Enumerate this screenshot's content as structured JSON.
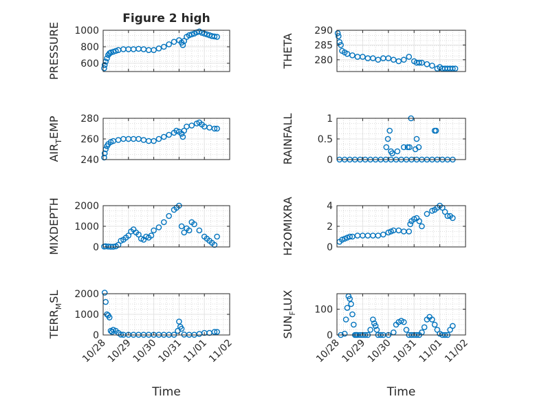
{
  "figure": {
    "title": "Figure 2 high",
    "marker_color": "#0072BD",
    "time_ticks": [
      "10/28",
      "10/29",
      "10/30",
      "10/31",
      "11/01",
      "11/02"
    ]
  },
  "chart_data": [
    {
      "id": "pressure",
      "type": "scatter",
      "title": "Figure 2 high",
      "ylabel_parts": [
        "PRESSURE"
      ],
      "xlabel": "",
      "xlim": [
        0,
        5
      ],
      "ylim": [
        500,
        1000
      ],
      "yticks": [
        600,
        800,
        1000
      ],
      "ytick_labels": [
        "600",
        "800",
        "1000"
      ],
      "grid": true,
      "x": [
        0.04,
        0.06,
        0.1,
        0.15,
        0.2,
        0.25,
        0.3,
        0.4,
        0.5,
        0.6,
        0.8,
        1.0,
        1.2,
        1.4,
        1.6,
        1.8,
        2.0,
        2.2,
        2.4,
        2.6,
        2.8,
        3.0,
        3.1,
        3.15,
        3.2,
        3.3,
        3.4,
        3.5,
        3.6,
        3.7,
        3.8,
        3.9,
        4.0,
        4.1,
        4.2,
        4.3,
        4.4,
        4.5
      ],
      "y": [
        540,
        580,
        620,
        660,
        700,
        720,
        730,
        740,
        750,
        760,
        770,
        770,
        770,
        775,
        770,
        760,
        760,
        780,
        800,
        830,
        860,
        880,
        850,
        820,
        870,
        920,
        940,
        950,
        960,
        975,
        985,
        970,
        960,
        950,
        940,
        930,
        925,
        920
      ]
    },
    {
      "id": "theta",
      "type": "scatter",
      "title": "",
      "ylabel_parts": [
        "THETA"
      ],
      "xlabel": "",
      "xlim": [
        0,
        5
      ],
      "ylim": [
        276,
        290
      ],
      "yticks": [
        280,
        285,
        290
      ],
      "ytick_labels": [
        "280",
        "285",
        "290"
      ],
      "grid": true,
      "x": [
        0.03,
        0.06,
        0.1,
        0.15,
        0.2,
        0.3,
        0.4,
        0.6,
        0.8,
        1.0,
        1.2,
        1.4,
        1.6,
        1.8,
        2.0,
        2.2,
        2.4,
        2.6,
        2.8,
        3.0,
        3.1,
        3.2,
        3.3,
        3.5,
        3.7,
        3.9,
        4.0,
        4.1,
        4.2,
        4.3,
        4.4,
        4.5,
        4.6
      ],
      "y": [
        289,
        288,
        286,
        285,
        283,
        282.5,
        282,
        281.5,
        281,
        281,
        280.5,
        280.5,
        280,
        280.5,
        280.5,
        280,
        279.5,
        280,
        281,
        279.5,
        279,
        279,
        279,
        278.5,
        278,
        277,
        277.5,
        277,
        277,
        277,
        277,
        277,
        277
      ]
    },
    {
      "id": "air_temp",
      "type": "scatter",
      "title": "",
      "ylabel_parts": [
        "AIR",
        "T",
        "EMP"
      ],
      "xlabel": "",
      "xlim": [
        0,
        5
      ],
      "ylim": [
        240,
        280
      ],
      "yticks": [
        240,
        260,
        280
      ],
      "ytick_labels": [
        "240",
        "260",
        "280"
      ],
      "grid": true,
      "x": [
        0.04,
        0.06,
        0.1,
        0.15,
        0.2,
        0.3,
        0.4,
        0.6,
        0.8,
        1.0,
        1.2,
        1.4,
        1.6,
        1.8,
        2.0,
        2.2,
        2.4,
        2.6,
        2.8,
        2.9,
        3.0,
        3.1,
        3.15,
        3.2,
        3.3,
        3.5,
        3.7,
        3.8,
        3.9,
        4.0,
        4.2,
        4.4,
        4.5
      ],
      "y": [
        242,
        246,
        250,
        253,
        255,
        257,
        258,
        259,
        260,
        260,
        260,
        260,
        259,
        258,
        258,
        260,
        262,
        264,
        266,
        268,
        267,
        265,
        262,
        268,
        272,
        273,
        275,
        276,
        274,
        272,
        271,
        270,
        270
      ]
    },
    {
      "id": "rainfall",
      "type": "scatter",
      "title": "",
      "ylabel_parts": [
        "RAINFALL"
      ],
      "xlabel": "",
      "xlim": [
        0,
        5
      ],
      "ylim": [
        0,
        1
      ],
      "yticks": [
        0,
        0.5,
        1
      ],
      "ytick_labels": [
        "0",
        "0.5",
        "1"
      ],
      "grid": true,
      "x": [
        0.1,
        0.3,
        0.5,
        0.7,
        0.9,
        1.1,
        1.3,
        1.5,
        1.7,
        1.9,
        2.1,
        2.3,
        2.5,
        2.7,
        2.9,
        3.1,
        3.3,
        3.5,
        3.7,
        3.9,
        4.1,
        4.3,
        4.5,
        1.92,
        1.98,
        2.05,
        2.1,
        2.15,
        2.35,
        2.6,
        2.75,
        2.82,
        2.88,
        3.05,
        3.1,
        3.18,
        3.8,
        3.85
      ],
      "y": [
        0,
        0,
        0,
        0,
        0,
        0,
        0,
        0,
        0,
        0,
        0,
        0,
        0,
        0,
        0,
        0,
        0,
        0,
        0,
        0,
        0,
        0,
        0,
        0.3,
        0.5,
        0.7,
        0.2,
        0.15,
        0.2,
        0.3,
        0.3,
        0.3,
        1.0,
        0.25,
        0.5,
        0.3,
        0.7,
        0.7
      ]
    },
    {
      "id": "mixdepth",
      "type": "scatter",
      "title": "",
      "ylabel_parts": [
        "MIXDEPTH"
      ],
      "xlabel": "",
      "xlim": [
        0,
        5
      ],
      "ylim": [
        0,
        2000
      ],
      "yticks": [
        0,
        1000,
        2000
      ],
      "ytick_labels": [
        "0",
        "1000",
        "2000"
      ],
      "grid": true,
      "x": [
        0.04,
        0.1,
        0.2,
        0.3,
        0.4,
        0.5,
        0.6,
        0.7,
        0.8,
        0.9,
        1.0,
        1.1,
        1.2,
        1.3,
        1.4,
        1.5,
        1.6,
        1.7,
        1.8,
        1.9,
        2.0,
        2.2,
        2.4,
        2.6,
        2.8,
        2.9,
        3.0,
        3.1,
        3.2,
        3.3,
        3.4,
        3.5,
        3.6,
        3.8,
        4.0,
        4.1,
        4.2,
        4.3,
        4.4,
        4.5
      ],
      "y": [
        20,
        30,
        20,
        10,
        10,
        30,
        100,
        300,
        350,
        450,
        550,
        750,
        850,
        700,
        600,
        400,
        350,
        500,
        450,
        550,
        800,
        950,
        1200,
        1500,
        1800,
        1900,
        2000,
        1000,
        700,
        900,
        800,
        1200,
        1100,
        800,
        500,
        400,
        300,
        200,
        100,
        500
      ]
    },
    {
      "id": "h2omixra",
      "type": "scatter",
      "title": "",
      "ylabel_parts": [
        "H2OMIXRA"
      ],
      "xlabel": "",
      "xlim": [
        0,
        5
      ],
      "ylim": [
        0,
        4
      ],
      "yticks": [
        0,
        2,
        4
      ],
      "ytick_labels": [
        "0",
        "2",
        "4"
      ],
      "grid": true,
      "x": [
        0.1,
        0.2,
        0.3,
        0.4,
        0.5,
        0.6,
        0.8,
        1.0,
        1.2,
        1.4,
        1.6,
        1.8,
        2.0,
        2.1,
        2.2,
        2.4,
        2.6,
        2.8,
        2.85,
        2.9,
        3.0,
        3.1,
        3.2,
        3.3,
        3.5,
        3.7,
        3.8,
        3.9,
        4.0,
        4.1,
        4.2,
        4.3,
        4.4,
        4.5
      ],
      "y": [
        0.5,
        0.7,
        0.8,
        0.9,
        1.0,
        1.0,
        1.1,
        1.1,
        1.1,
        1.1,
        1.1,
        1.2,
        1.4,
        1.5,
        1.6,
        1.6,
        1.5,
        1.5,
        2.2,
        2.5,
        2.7,
        2.8,
        2.5,
        2.0,
        3.2,
        3.5,
        3.6,
        3.8,
        4.0,
        3.8,
        3.4,
        3.0,
        3.0,
        2.8
      ]
    },
    {
      "id": "terr_msl",
      "type": "scatter",
      "title": "",
      "ylabel_parts": [
        "TERR",
        "M",
        "SL"
      ],
      "xlabel": "Time",
      "xlim": [
        0,
        5
      ],
      "ylim": [
        0,
        2000
      ],
      "yticks": [
        0,
        1000,
        2000
      ],
      "ytick_labels": [
        "0",
        "1000",
        "2000"
      ],
      "grid": true,
      "x": [
        0.06,
        0.1,
        0.15,
        0.2,
        0.25,
        0.3,
        0.35,
        0.4,
        0.5,
        0.6,
        0.7,
        0.8,
        1.0,
        1.2,
        1.4,
        1.6,
        1.8,
        2.0,
        2.2,
        2.4,
        2.6,
        2.8,
        2.95,
        3.0,
        3.05,
        3.1,
        3.2,
        3.4,
        3.6,
        3.8,
        4.0,
        4.2,
        4.4,
        4.5
      ],
      "y": [
        2050,
        1600,
        1000,
        950,
        850,
        200,
        150,
        250,
        200,
        100,
        20,
        10,
        10,
        10,
        10,
        10,
        10,
        10,
        10,
        10,
        10,
        10,
        200,
        650,
        400,
        300,
        20,
        10,
        10,
        50,
        100,
        100,
        150,
        150
      ]
    },
    {
      "id": "sun_flux",
      "type": "scatter",
      "title": "",
      "ylabel_parts": [
        "SUN",
        "F",
        "LUX"
      ],
      "xlabel": "Time",
      "xlim": [
        0,
        5
      ],
      "ylim": [
        0,
        160
      ],
      "yticks": [
        0,
        100
      ],
      "ytick_labels": [
        "0",
        "100"
      ],
      "grid": true,
      "x": [
        0.15,
        0.3,
        0.35,
        0.4,
        0.45,
        0.5,
        0.55,
        0.6,
        0.65,
        0.7,
        0.75,
        0.8,
        0.9,
        1.0,
        1.1,
        1.2,
        1.3,
        1.4,
        1.45,
        1.5,
        1.55,
        1.6,
        1.7,
        1.8,
        2.0,
        2.2,
        2.3,
        2.4,
        2.5,
        2.6,
        2.7,
        2.8,
        2.9,
        3.0,
        3.1,
        3.2,
        3.3,
        3.4,
        3.5,
        3.6,
        3.7,
        3.8,
        3.9,
        4.0,
        4.1,
        4.2,
        4.3,
        4.4,
        4.5
      ],
      "y": [
        0,
        5,
        60,
        105,
        150,
        140,
        120,
        80,
        40,
        0,
        0,
        0,
        0,
        0,
        0,
        0,
        20,
        60,
        45,
        35,
        20,
        0,
        0,
        0,
        0,
        10,
        40,
        50,
        55,
        50,
        20,
        0,
        0,
        0,
        0,
        0,
        10,
        30,
        60,
        70,
        60,
        40,
        20,
        5,
        0,
        0,
        0,
        20,
        35
      ]
    }
  ]
}
